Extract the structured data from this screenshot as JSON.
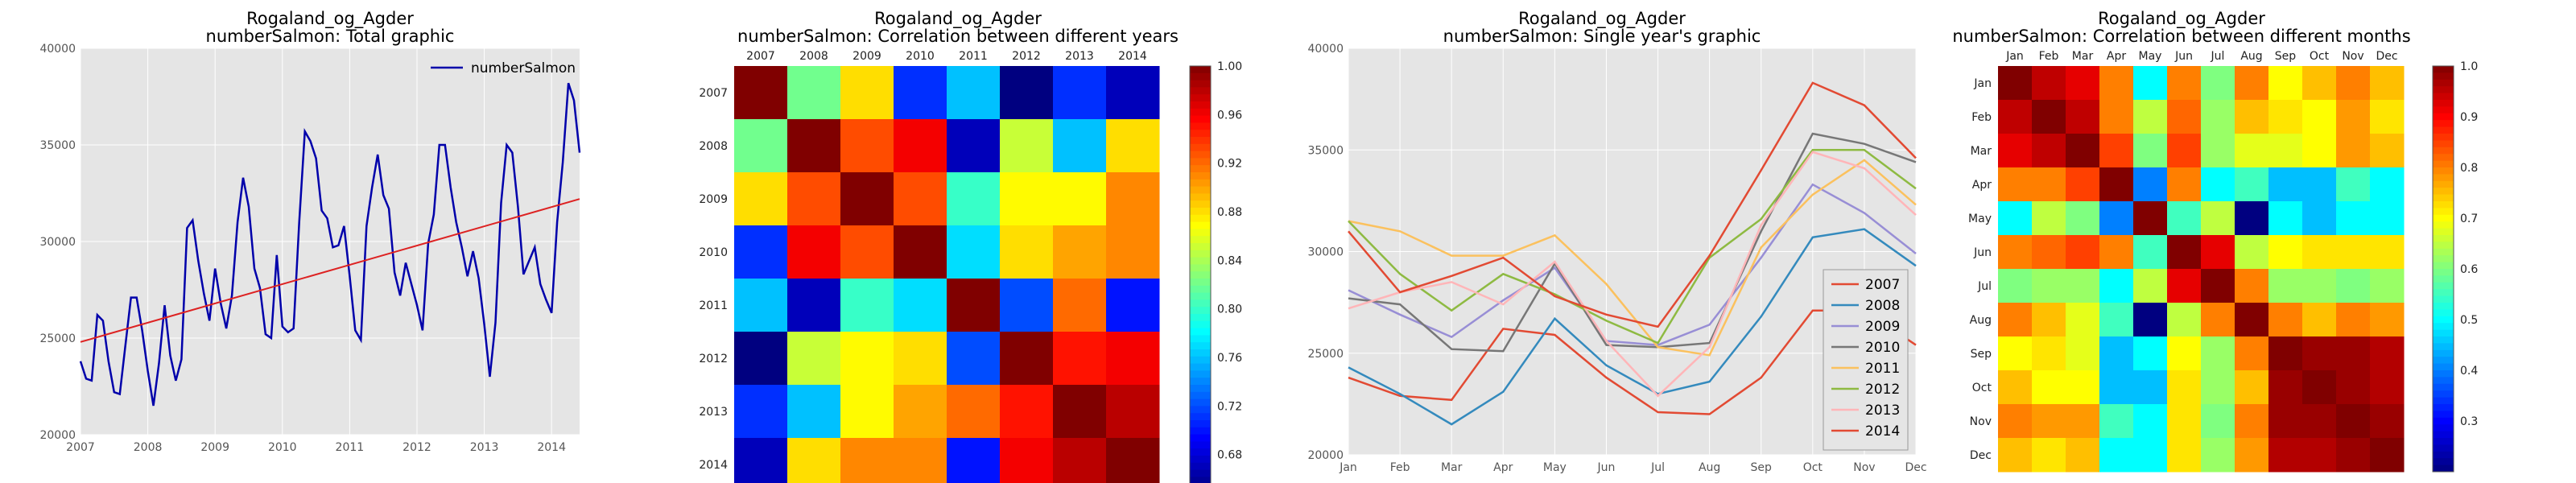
{
  "chart_data": [
    {
      "type": "line",
      "title": "Rogaland_og_Agder",
      "subtitle": "numberSalmon: Total graphic",
      "x_ticks": [
        "2007",
        "2008",
        "2009",
        "2010",
        "2011",
        "2012",
        "2013",
        "2014"
      ],
      "y_ticks": [
        "20000",
        "25000",
        "30000",
        "35000",
        "40000"
      ],
      "ylim": [
        20000,
        40000
      ],
      "grid": true,
      "legend": "top-right",
      "colors": {
        "series": "#0000aa",
        "trend": "#dd2222",
        "bg": "#e5e5e5"
      },
      "series": [
        {
          "name": "numberSalmon",
          "values": [
            23800,
            22900,
            22800,
            26200,
            25900,
            23800,
            22200,
            22100,
            24600,
            27100,
            27100,
            25400,
            23300,
            21500,
            23700,
            26700,
            24100,
            22800,
            23900,
            30700,
            31100,
            29000,
            27300,
            25900,
            28600,
            26800,
            25500,
            27200,
            31000,
            33300,
            31800,
            28600,
            27600,
            25200,
            25000,
            29300,
            25600,
            25300,
            25500,
            31000,
            35700,
            35200,
            34300,
            31600,
            31200,
            29700,
            29800,
            30800,
            28200,
            25400,
            24900,
            30800,
            32800,
            34500,
            32400,
            31700,
            28400,
            27200,
            28900,
            27800,
            26700,
            25400,
            29900,
            31400,
            35000,
            35000,
            32800,
            31000,
            29700,
            28200,
            29500,
            28100,
            25700,
            23000,
            25800,
            32000,
            35000,
            34600,
            31800,
            28300,
            29000,
            29700,
            27800,
            27000,
            26300,
            31000,
            34100,
            38200,
            37300,
            34600
          ]
        },
        {
          "name": "",
          "trend": true,
          "values": [
            24800,
            32200
          ]
        }
      ]
    },
    {
      "type": "heatmap",
      "title": "Rogaland_og_Agder",
      "subtitle": "numberSalmon: Correlation between different years",
      "x_labels": [
        "2007",
        "2008",
        "2009",
        "2010",
        "2011",
        "2012",
        "2013",
        "2014"
      ],
      "y_labels": [
        "2007",
        "2008",
        "2009",
        "2010",
        "2011",
        "2012",
        "2013",
        "2014"
      ],
      "vmin": 0.65,
      "vmax": 1.0,
      "colorbar_ticks": [
        "1.00",
        "0.96",
        "0.92",
        "0.88",
        "0.84",
        "0.80",
        "0.76",
        "0.72",
        "0.68"
      ],
      "matrix": [
        [
          1.0,
          0.82,
          0.88,
          0.71,
          0.76,
          0.65,
          0.71,
          0.67
        ],
        [
          0.82,
          1.0,
          0.93,
          0.96,
          0.67,
          0.85,
          0.76,
          0.88
        ],
        [
          0.88,
          0.93,
          1.0,
          0.93,
          0.8,
          0.87,
          0.87,
          0.91
        ],
        [
          0.71,
          0.96,
          0.93,
          1.0,
          0.77,
          0.88,
          0.9,
          0.91
        ],
        [
          0.76,
          0.67,
          0.8,
          0.77,
          1.0,
          0.72,
          0.92,
          0.7
        ],
        [
          0.65,
          0.85,
          0.87,
          0.88,
          0.72,
          1.0,
          0.95,
          0.96
        ],
        [
          0.71,
          0.76,
          0.87,
          0.9,
          0.92,
          0.95,
          1.0,
          0.98
        ],
        [
          0.67,
          0.88,
          0.91,
          0.91,
          0.7,
          0.96,
          0.98,
          1.0
        ]
      ]
    },
    {
      "type": "line",
      "title": "Rogaland_og_Agder",
      "subtitle": "numberSalmon: Single year's graphic",
      "categories": [
        "Jan",
        "Feb",
        "Mar",
        "Apr",
        "May",
        "Jun",
        "Jul",
        "Aug",
        "Sep",
        "Oct",
        "Nov",
        "Dec"
      ],
      "y_ticks": [
        "20000",
        "25000",
        "30000",
        "35000",
        "40000"
      ],
      "ylim": [
        20000,
        40000
      ],
      "grid": true,
      "legend": "bottom-right",
      "series": [
        {
          "name": "2007",
          "color": "#e24a33",
          "values": [
            23800,
            22900,
            22700,
            26200,
            25900,
            23800,
            22100,
            22000,
            23800,
            27100,
            27100,
            25400
          ]
        },
        {
          "name": "2008",
          "color": "#348abd",
          "values": [
            24300,
            23000,
            21500,
            23100,
            26700,
            24400,
            23000,
            23600,
            26800,
            30700,
            31100,
            29300
          ]
        },
        {
          "name": "2009",
          "color": "#988ed5",
          "values": [
            28100,
            26900,
            25800,
            27600,
            29200,
            25600,
            25400,
            26400,
            29700,
            33300,
            31900,
            29900
          ]
        },
        {
          "name": "2010",
          "color": "#777777",
          "values": [
            27700,
            27400,
            25200,
            25100,
            29400,
            25400,
            25300,
            25500,
            31000,
            35800,
            35300,
            34400
          ]
        },
        {
          "name": "2011",
          "color": "#fbc15e",
          "values": [
            31500,
            31000,
            29800,
            29800,
            30800,
            28400,
            25300,
            24900,
            30200,
            32800,
            34500,
            32300
          ]
        },
        {
          "name": "2012",
          "color": "#8eba42",
          "values": [
            31500,
            28900,
            27100,
            28900,
            27900,
            26600,
            25500,
            29700,
            31600,
            35000,
            35000,
            33100
          ]
        },
        {
          "name": "2013",
          "color": "#ffb5b8",
          "values": [
            27200,
            28000,
            28500,
            27400,
            29500,
            25600,
            22900,
            25300,
            31300,
            34900,
            34100,
            31800
          ]
        },
        {
          "name": "2014",
          "color": "#e24a33",
          "values": [
            31000,
            28000,
            28800,
            29700,
            27800,
            26900,
            26300,
            29800,
            34000,
            38300,
            37200,
            34600
          ]
        }
      ]
    },
    {
      "type": "heatmap",
      "title": "Rogaland_og_Agder",
      "subtitle": "numberSalmon: Correlation between different months",
      "x_labels": [
        "Jan",
        "Feb",
        "Mar",
        "Apr",
        "May",
        "Jun",
        "Jul",
        "Aug",
        "Sep",
        "Oct",
        "Nov",
        "Dec"
      ],
      "y_labels": [
        "Jan",
        "Feb",
        "Mar",
        "Apr",
        "May",
        "Jun",
        "Jul",
        "Aug",
        "Sep",
        "Oct",
        "Nov",
        "Dec"
      ],
      "vmin": 0.2,
      "vmax": 1.0,
      "colorbar_ticks": [
        "1.0",
        "0.9",
        "0.8",
        "0.7",
        "0.6",
        "0.5",
        "0.4",
        "0.3"
      ],
      "matrix": [
        [
          1.0,
          0.95,
          0.92,
          0.8,
          0.5,
          0.8,
          0.6,
          0.8,
          0.7,
          0.75,
          0.8,
          0.75
        ],
        [
          0.95,
          1.0,
          0.95,
          0.8,
          0.65,
          0.82,
          0.62,
          0.75,
          0.72,
          0.7,
          0.78,
          0.72
        ],
        [
          0.92,
          0.95,
          1.0,
          0.85,
          0.6,
          0.85,
          0.62,
          0.68,
          0.68,
          0.7,
          0.78,
          0.75
        ],
        [
          0.8,
          0.8,
          0.85,
          1.0,
          0.4,
          0.8,
          0.5,
          0.55,
          0.45,
          0.45,
          0.55,
          0.5
        ],
        [
          0.5,
          0.65,
          0.6,
          0.4,
          1.0,
          0.55,
          0.65,
          0.2,
          0.5,
          0.45,
          0.5,
          0.5
        ],
        [
          0.8,
          0.82,
          0.85,
          0.8,
          0.55,
          1.0,
          0.92,
          0.65,
          0.7,
          0.72,
          0.72,
          0.72
        ],
        [
          0.6,
          0.62,
          0.62,
          0.5,
          0.65,
          0.92,
          1.0,
          0.8,
          0.62,
          0.62,
          0.6,
          0.62
        ],
        [
          0.8,
          0.75,
          0.68,
          0.55,
          0.2,
          0.65,
          0.8,
          1.0,
          0.8,
          0.75,
          0.8,
          0.78
        ],
        [
          0.7,
          0.72,
          0.68,
          0.45,
          0.5,
          0.7,
          0.62,
          0.8,
          1.0,
          0.98,
          0.98,
          0.96
        ],
        [
          0.75,
          0.7,
          0.7,
          0.45,
          0.45,
          0.72,
          0.62,
          0.75,
          0.98,
          1.0,
          0.98,
          0.96
        ],
        [
          0.8,
          0.78,
          0.78,
          0.55,
          0.5,
          0.72,
          0.6,
          0.8,
          0.98,
          0.98,
          1.0,
          0.98
        ],
        [
          0.75,
          0.72,
          0.75,
          0.5,
          0.5,
          0.72,
          0.62,
          0.78,
          0.96,
          0.96,
          0.98,
          1.0
        ]
      ]
    }
  ]
}
